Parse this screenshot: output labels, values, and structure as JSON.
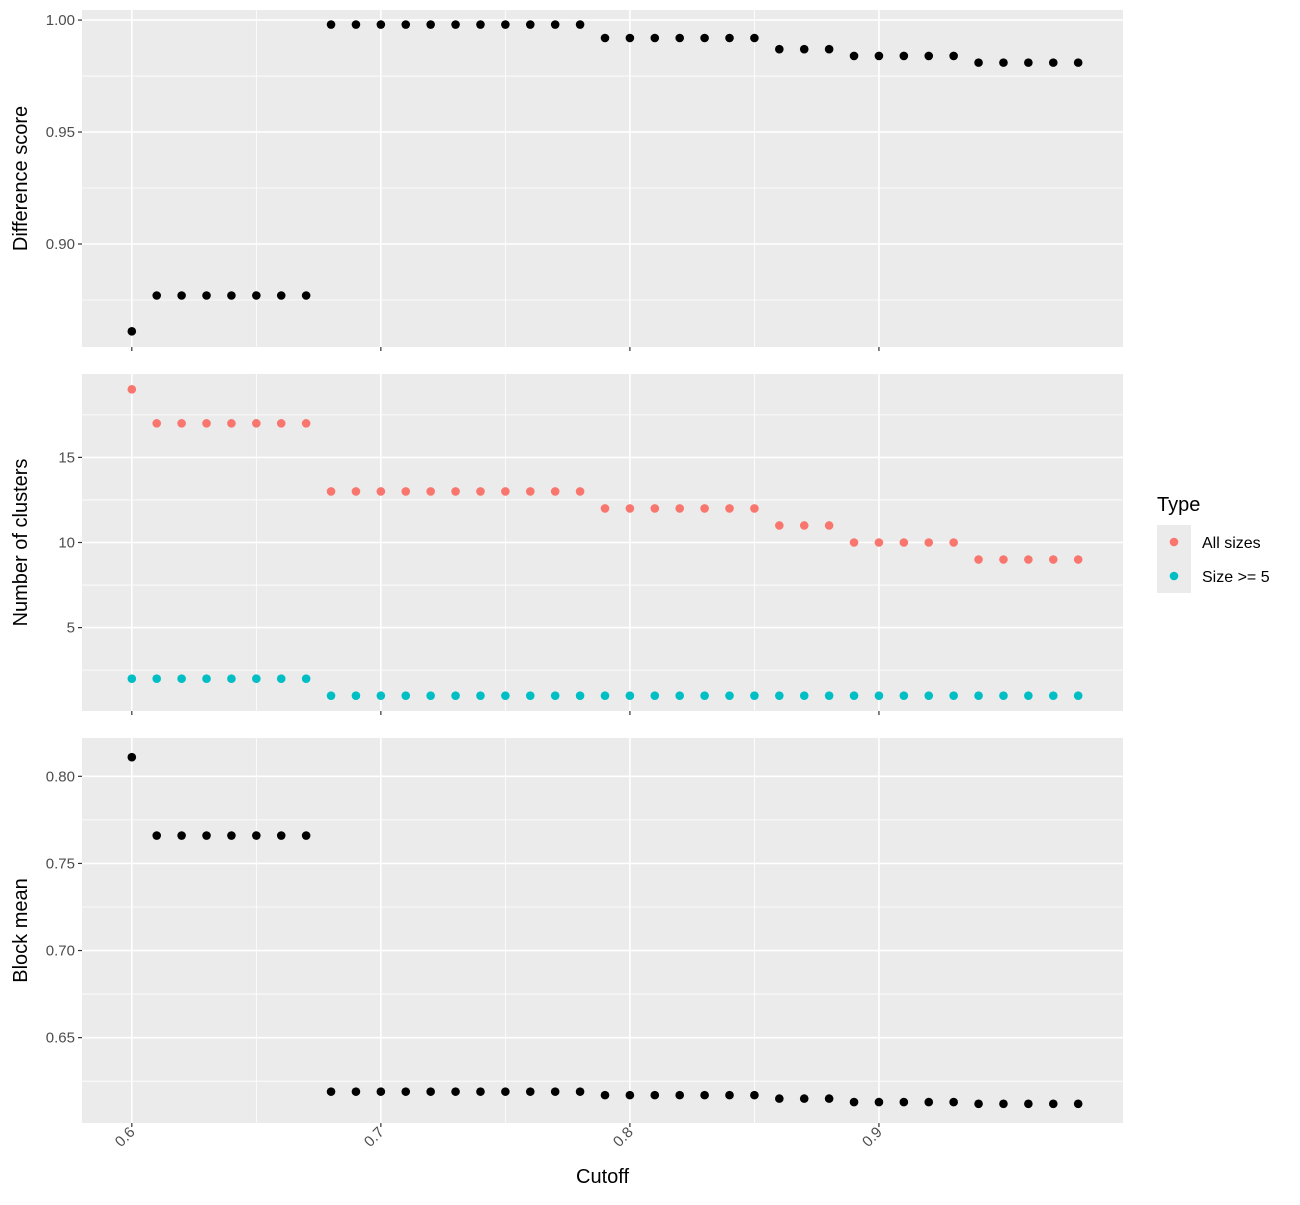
{
  "chart_data": {
    "type": "scatter",
    "x_label": "Cutoff",
    "x_ticks": [
      0.6,
      0.7,
      0.8,
      0.9
    ],
    "x_tick_labels": [
      "0.6",
      "0.7",
      "0.8",
      "0.9"
    ],
    "x_range": [
      0.58,
      0.998
    ],
    "legend": {
      "title": "Type",
      "position": "right",
      "entries": [
        {
          "label": "All sizes",
          "color": "#F8766D"
        },
        {
          "label": "Size >= 5",
          "color": "#00BFC4"
        }
      ]
    },
    "x": [
      0.6,
      0.61,
      0.62,
      0.63,
      0.64,
      0.65,
      0.66,
      0.67,
      0.68,
      0.69,
      0.7,
      0.71,
      0.72,
      0.73,
      0.74,
      0.75,
      0.76,
      0.77,
      0.78,
      0.79,
      0.8,
      0.81,
      0.82,
      0.83,
      0.84,
      0.85,
      0.86,
      0.87,
      0.88,
      0.89,
      0.9,
      0.91,
      0.92,
      0.93,
      0.94,
      0.95,
      0.96,
      0.97,
      0.98
    ],
    "panels": [
      {
        "ylabel": "Difference score",
        "ylim": [
          0.854,
          1.0045
        ],
        "y_ticks": [
          0.9,
          0.95,
          1.0
        ],
        "y_tick_labels": [
          "0.90",
          "0.95",
          "1.00"
        ],
        "series": [
          {
            "color": "#000000",
            "values": [
              0.861,
              0.877,
              0.877,
              0.877,
              0.877,
              0.877,
              0.877,
              0.877,
              0.998,
              0.998,
              0.998,
              0.998,
              0.998,
              0.998,
              0.998,
              0.998,
              0.998,
              0.998,
              0.998,
              0.992,
              0.992,
              0.992,
              0.992,
              0.992,
              0.992,
              0.992,
              0.987,
              0.987,
              0.987,
              0.984,
              0.984,
              0.984,
              0.984,
              0.984,
              0.981,
              0.981,
              0.981,
              0.981,
              0.981
            ]
          }
        ]
      },
      {
        "ylabel": "Number of clusters",
        "ylim": [
          0.1,
          19.9
        ],
        "y_ticks": [
          5,
          10,
          15
        ],
        "y_tick_labels": [
          "5",
          "10",
          "15"
        ],
        "series": [
          {
            "name": "All sizes",
            "color": "#F8766D",
            "values": [
              19,
              17,
              17,
              17,
              17,
              17,
              17,
              17,
              13,
              13,
              13,
              13,
              13,
              13,
              13,
              13,
              13,
              13,
              13,
              12,
              12,
              12,
              12,
              12,
              12,
              12,
              11,
              11,
              11,
              10,
              10,
              10,
              10,
              10,
              9,
              9,
              9,
              9,
              9
            ]
          },
          {
            "name": "Size >= 5",
            "color": "#00BFC4",
            "values": [
              2,
              2,
              2,
              2,
              2,
              2,
              2,
              2,
              1,
              1,
              1,
              1,
              1,
              1,
              1,
              1,
              1,
              1,
              1,
              1,
              1,
              1,
              1,
              1,
              1,
              1,
              1,
              1,
              1,
              1,
              1,
              1,
              1,
              1,
              1,
              1,
              1,
              1,
              1
            ]
          }
        ]
      },
      {
        "ylabel": "Block mean",
        "ylim": [
          0.601,
          0.822
        ],
        "y_ticks": [
          0.65,
          0.7,
          0.75,
          0.8
        ],
        "y_tick_labels": [
          "0.65",
          "0.70",
          "0.75",
          "0.80"
        ],
        "series": [
          {
            "color": "#000000",
            "values": [
              0.811,
              0.766,
              0.766,
              0.766,
              0.766,
              0.766,
              0.766,
              0.766,
              0.619,
              0.619,
              0.619,
              0.619,
              0.619,
              0.619,
              0.619,
              0.619,
              0.619,
              0.619,
              0.619,
              0.617,
              0.617,
              0.617,
              0.617,
              0.617,
              0.617,
              0.617,
              0.615,
              0.615,
              0.615,
              0.613,
              0.613,
              0.613,
              0.613,
              0.613,
              0.612,
              0.612,
              0.612,
              0.612,
              0.612
            ]
          }
        ]
      }
    ]
  }
}
